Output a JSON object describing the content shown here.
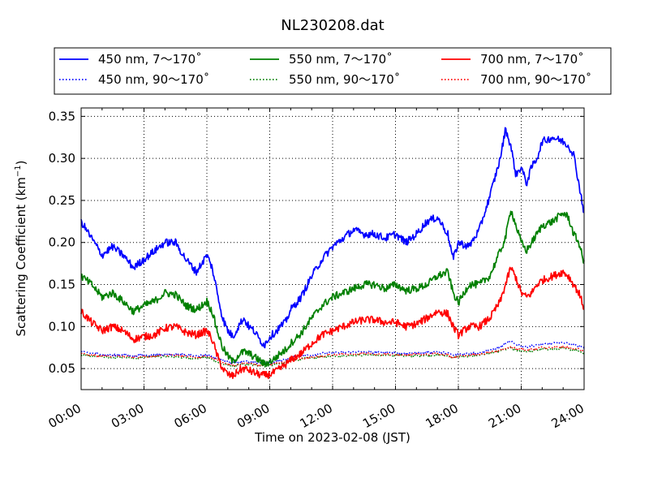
{
  "chart_data": {
    "type": "line",
    "title": "NL230208.dat",
    "xlabel": "Time on 2023-02-08 (JST)",
    "ylabel": {
      "prefix": "Scattering Coefficient (km",
      "sup": "−1",
      "suffix": ")"
    },
    "xlim": [
      "00:00",
      "24:00"
    ],
    "ylim": [
      0.025,
      0.36
    ],
    "x_ticks": [
      "00:00",
      "03:00",
      "06:00",
      "09:00",
      "12:00",
      "15:00",
      "18:00",
      "21:00",
      "24:00"
    ],
    "y_ticks": [
      "0.05",
      "0.10",
      "0.15",
      "0.20",
      "0.25",
      "0.30",
      "0.35"
    ],
    "grid": true,
    "legend_placement": "top, above plot (3 columns)",
    "x_hours": [
      0,
      0.5,
      1,
      1.5,
      2,
      2.5,
      3,
      3.5,
      4,
      4.5,
      5,
      5.5,
      6,
      6.25,
      6.5,
      6.75,
      7,
      7.25,
      7.5,
      7.75,
      8,
      8.25,
      8.5,
      8.75,
      9,
      9.25,
      9.5,
      9.75,
      10,
      10.5,
      11,
      11.5,
      12,
      12.5,
      13,
      13.5,
      14,
      14.5,
      15,
      15.5,
      16,
      16.5,
      17,
      17.5,
      17.75,
      18,
      18.5,
      19,
      19.5,
      20,
      20.25,
      20.5,
      20.75,
      21,
      21.25,
      21.5,
      21.75,
      22,
      22.5,
      23,
      23.25,
      23.5,
      23.75,
      24
    ],
    "series": [
      {
        "name": "450 nm, 7～170˚",
        "color": "#0000ff",
        "style": "solid",
        "values": [
          0.225,
          0.205,
          0.185,
          0.195,
          0.185,
          0.17,
          0.18,
          0.19,
          0.2,
          0.2,
          0.18,
          0.165,
          0.185,
          0.17,
          0.14,
          0.11,
          0.095,
          0.088,
          0.1,
          0.11,
          0.1,
          0.095,
          0.085,
          0.078,
          0.088,
          0.093,
          0.1,
          0.105,
          0.12,
          0.135,
          0.16,
          0.18,
          0.195,
          0.205,
          0.215,
          0.21,
          0.21,
          0.205,
          0.21,
          0.2,
          0.21,
          0.225,
          0.23,
          0.21,
          0.18,
          0.2,
          0.195,
          0.215,
          0.255,
          0.3,
          0.335,
          0.315,
          0.28,
          0.29,
          0.27,
          0.29,
          0.3,
          0.32,
          0.325,
          0.32,
          0.315,
          0.305,
          0.27,
          0.235
        ]
      },
      {
        "name": "550 nm, 7～170˚",
        "color": "#008000",
        "style": "solid",
        "values": [
          0.16,
          0.15,
          0.135,
          0.14,
          0.13,
          0.118,
          0.125,
          0.13,
          0.14,
          0.138,
          0.125,
          0.12,
          0.13,
          0.118,
          0.095,
          0.075,
          0.065,
          0.058,
          0.066,
          0.07,
          0.068,
          0.064,
          0.06,
          0.055,
          0.058,
          0.062,
          0.068,
          0.072,
          0.08,
          0.092,
          0.11,
          0.125,
          0.135,
          0.14,
          0.145,
          0.15,
          0.15,
          0.145,
          0.15,
          0.143,
          0.145,
          0.15,
          0.16,
          0.165,
          0.14,
          0.128,
          0.15,
          0.15,
          0.16,
          0.19,
          0.205,
          0.24,
          0.22,
          0.2,
          0.19,
          0.2,
          0.21,
          0.22,
          0.225,
          0.235,
          0.23,
          0.21,
          0.2,
          0.175
        ]
      },
      {
        "name": "700 nm, 7～170˚",
        "color": "#ff0000",
        "style": "solid",
        "values": [
          0.118,
          0.105,
          0.095,
          0.1,
          0.095,
          0.085,
          0.088,
          0.09,
          0.098,
          0.1,
          0.093,
          0.09,
          0.095,
          0.085,
          0.065,
          0.05,
          0.043,
          0.041,
          0.047,
          0.05,
          0.048,
          0.045,
          0.043,
          0.042,
          0.043,
          0.046,
          0.05,
          0.055,
          0.06,
          0.068,
          0.08,
          0.09,
          0.095,
          0.1,
          0.105,
          0.108,
          0.108,
          0.105,
          0.105,
          0.1,
          0.103,
          0.11,
          0.118,
          0.115,
          0.1,
          0.09,
          0.1,
          0.1,
          0.11,
          0.13,
          0.15,
          0.17,
          0.158,
          0.14,
          0.135,
          0.14,
          0.15,
          0.155,
          0.16,
          0.165,
          0.16,
          0.15,
          0.14,
          0.122
        ]
      },
      {
        "name": "450 nm, 90～170˚",
        "color": "#0000ff",
        "style": "dotted",
        "values": [
          0.07,
          0.068,
          0.067,
          0.066,
          0.066,
          0.065,
          0.066,
          0.066,
          0.067,
          0.067,
          0.066,
          0.065,
          0.066,
          0.065,
          0.062,
          0.059,
          0.058,
          0.057,
          0.058,
          0.059,
          0.058,
          0.057,
          0.057,
          0.056,
          0.057,
          0.058,
          0.06,
          0.061,
          0.063,
          0.065,
          0.066,
          0.068,
          0.069,
          0.069,
          0.07,
          0.07,
          0.069,
          0.069,
          0.069,
          0.068,
          0.069,
          0.069,
          0.07,
          0.068,
          0.066,
          0.067,
          0.068,
          0.069,
          0.072,
          0.076,
          0.08,
          0.082,
          0.079,
          0.077,
          0.076,
          0.077,
          0.078,
          0.079,
          0.08,
          0.081,
          0.08,
          0.078,
          0.077,
          0.075
        ]
      },
      {
        "name": "550 nm, 90～170˚",
        "color": "#008000",
        "style": "dotted",
        "values": [
          0.066,
          0.065,
          0.064,
          0.063,
          0.064,
          0.062,
          0.063,
          0.064,
          0.064,
          0.064,
          0.063,
          0.062,
          0.063,
          0.061,
          0.058,
          0.055,
          0.054,
          0.053,
          0.054,
          0.055,
          0.055,
          0.054,
          0.053,
          0.053,
          0.054,
          0.055,
          0.056,
          0.057,
          0.059,
          0.061,
          0.063,
          0.064,
          0.065,
          0.065,
          0.066,
          0.066,
          0.066,
          0.065,
          0.066,
          0.065,
          0.065,
          0.066,
          0.066,
          0.065,
          0.063,
          0.064,
          0.065,
          0.066,
          0.068,
          0.071,
          0.073,
          0.074,
          0.072,
          0.071,
          0.07,
          0.071,
          0.072,
          0.073,
          0.073,
          0.074,
          0.073,
          0.072,
          0.071,
          0.068
        ]
      },
      {
        "name": "700 nm, 90～170˚",
        "color": "#ff0000",
        "style": "dotted",
        "values": [
          0.068,
          0.066,
          0.065,
          0.065,
          0.065,
          0.064,
          0.064,
          0.065,
          0.066,
          0.066,
          0.065,
          0.064,
          0.064,
          0.063,
          0.06,
          0.057,
          0.055,
          0.054,
          0.055,
          0.056,
          0.056,
          0.055,
          0.054,
          0.054,
          0.055,
          0.056,
          0.057,
          0.058,
          0.06,
          0.062,
          0.064,
          0.065,
          0.066,
          0.067,
          0.067,
          0.068,
          0.067,
          0.067,
          0.067,
          0.066,
          0.067,
          0.067,
          0.068,
          0.066,
          0.064,
          0.065,
          0.066,
          0.067,
          0.069,
          0.072,
          0.074,
          0.076,
          0.074,
          0.073,
          0.072,
          0.073,
          0.074,
          0.075,
          0.075,
          0.076,
          0.075,
          0.074,
          0.073,
          0.071
        ]
      }
    ],
    "legend_order": [
      0,
      1,
      2,
      3,
      4,
      5
    ]
  }
}
